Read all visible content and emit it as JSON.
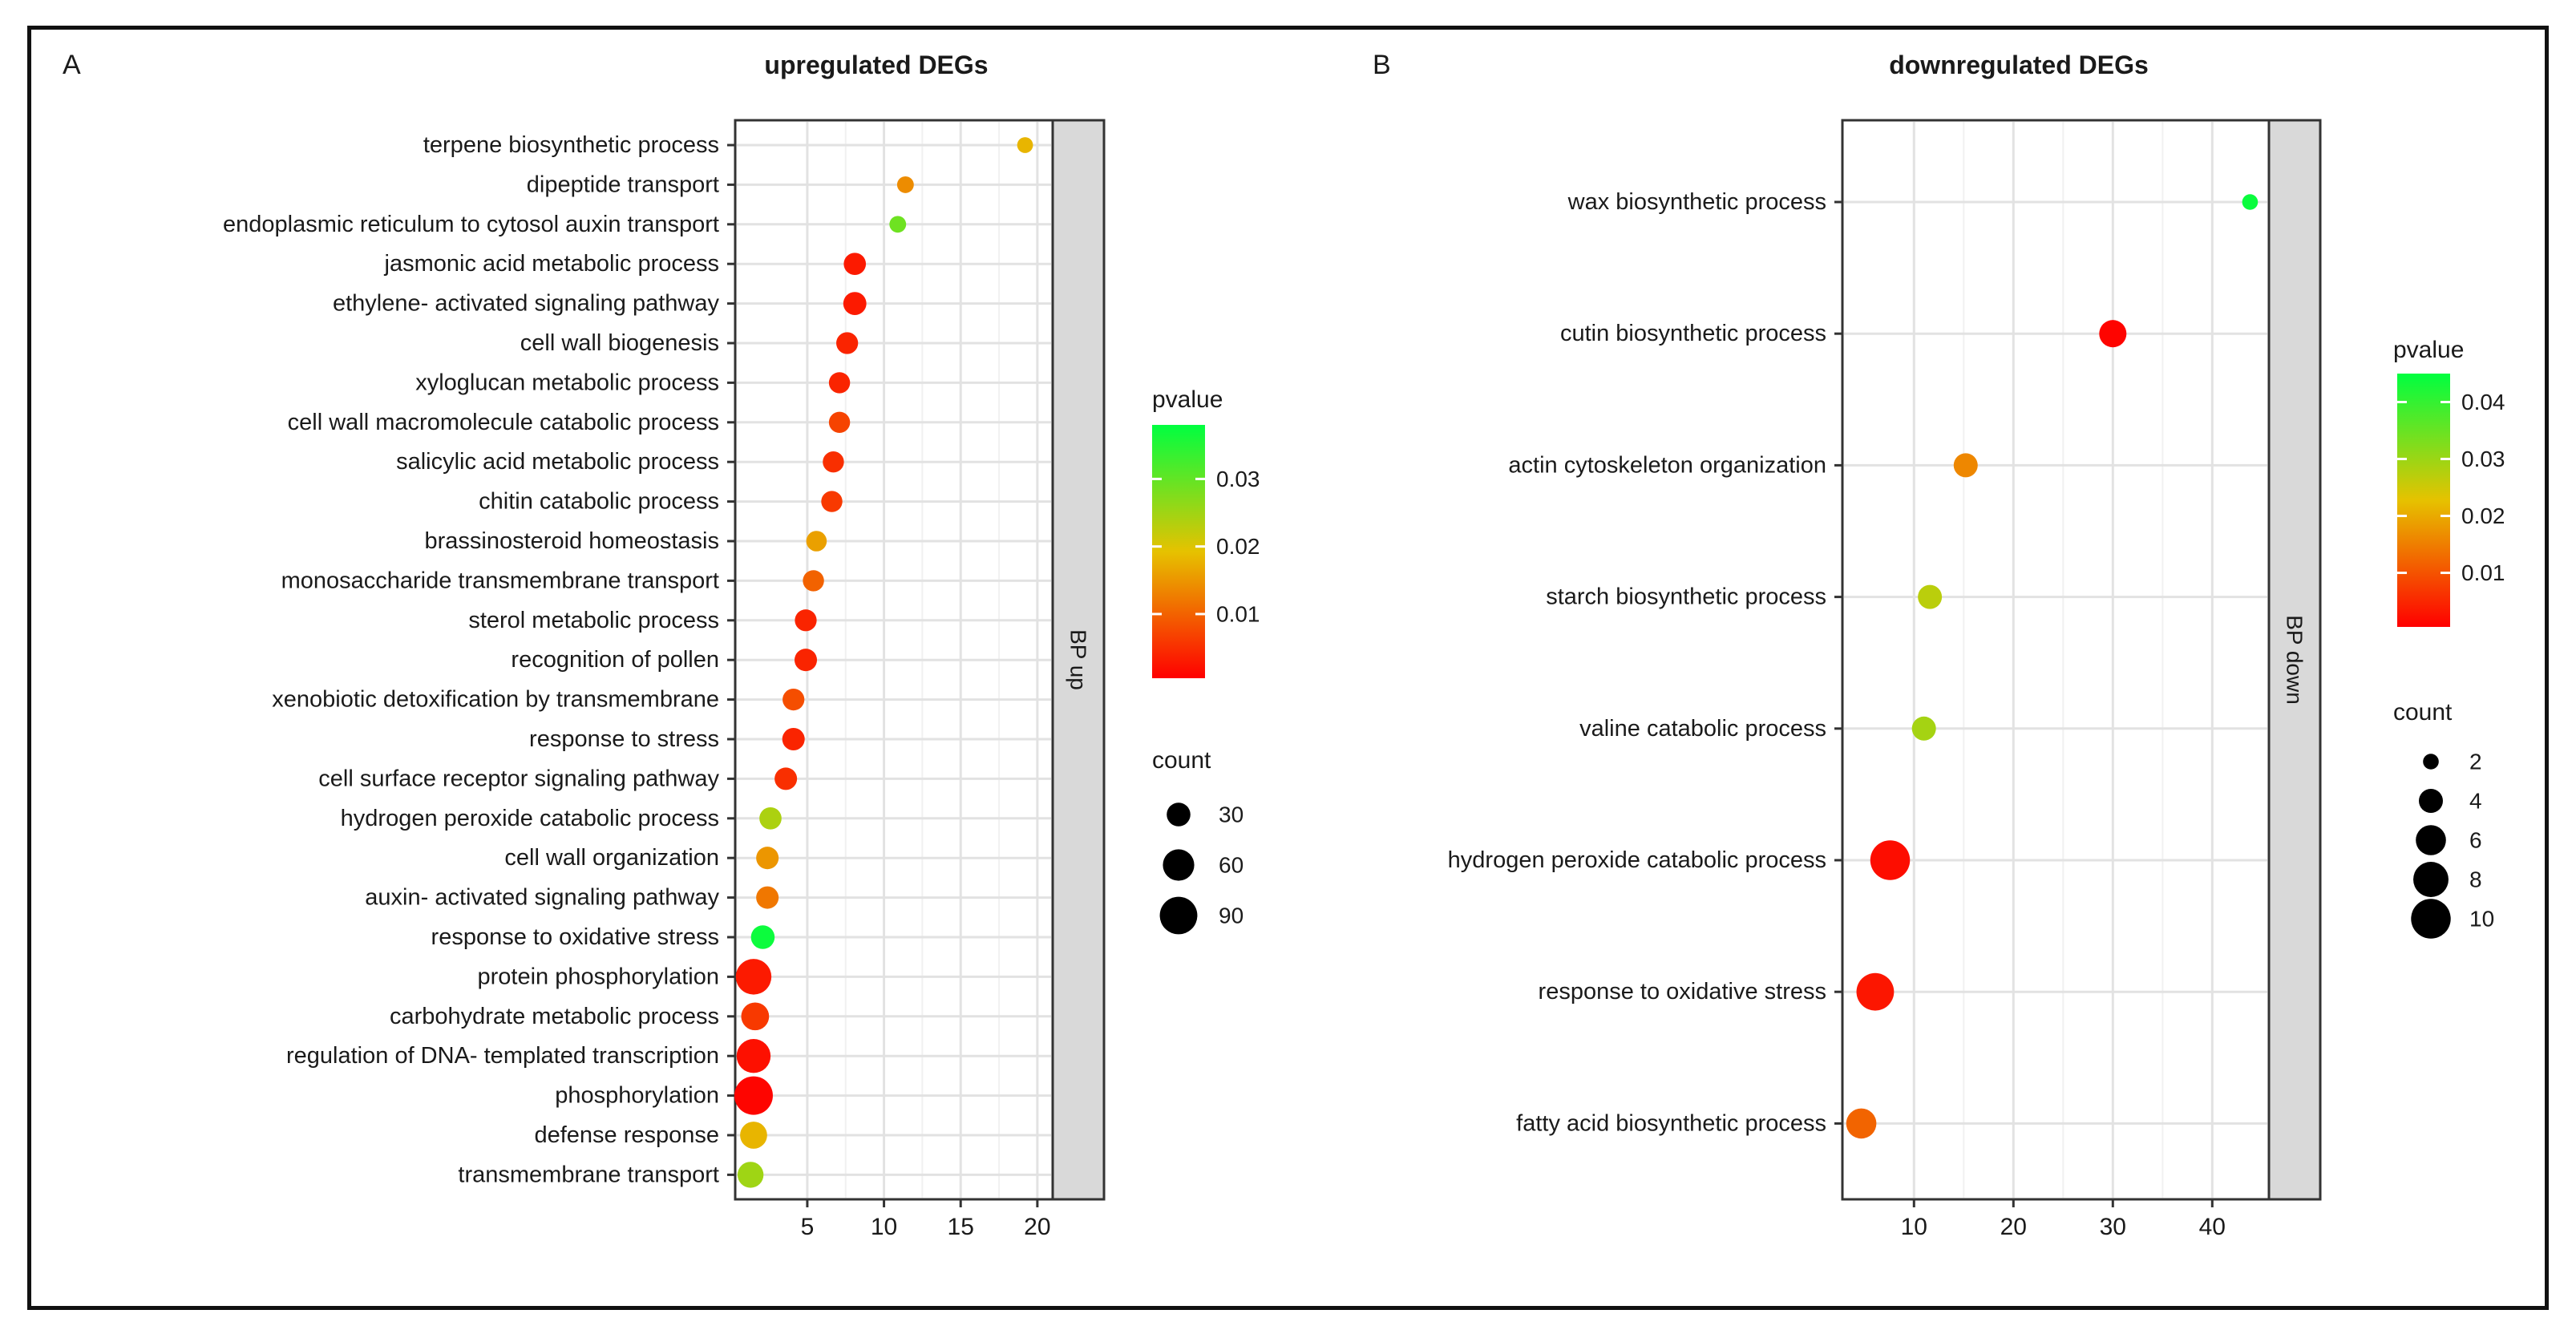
{
  "panels": [
    {
      "panel_label": "A",
      "title": "upregulated DEGs",
      "strip_label": "BP up",
      "colorbar_title": "pvalue",
      "size_title": "count",
      "colorbar_ticks": [
        {
          "label": "0.03",
          "value": 0.03
        },
        {
          "label": "0.02",
          "value": 0.02
        },
        {
          "label": "0.01",
          "value": 0.01
        }
      ],
      "size_ticks": [
        {
          "label": "30",
          "value": 30
        },
        {
          "label": "60",
          "value": 60
        },
        {
          "label": "90",
          "value": 90
        }
      ]
    },
    {
      "panel_label": "B",
      "title": "downregulated DEGs",
      "strip_label": "BP down",
      "colorbar_title": "pvalue",
      "size_title": "count",
      "colorbar_ticks": [
        {
          "label": "0.04",
          "value": 0.04
        },
        {
          "label": "0.03",
          "value": 0.03
        },
        {
          "label": "0.02",
          "value": 0.02
        },
        {
          "label": "0.01",
          "value": 0.01
        }
      ],
      "size_ticks": [
        {
          "label": "2",
          "value": 2
        },
        {
          "label": "4",
          "value": 4
        },
        {
          "label": "6",
          "value": 6
        },
        {
          "label": "8",
          "value": 8
        },
        {
          "label": "10",
          "value": 10
        }
      ]
    }
  ],
  "chart_data": [
    {
      "type": "scatter",
      "title": "upregulated DEGs",
      "facet": "BP up",
      "xlabel": "",
      "ylabel": "",
      "xlim": [
        0.3,
        21
      ],
      "xticks": [
        "5",
        "10",
        "15",
        "20"
      ],
      "xtick_values": [
        5,
        10,
        15,
        20
      ],
      "color_scale": {
        "name": "pvalue",
        "min": 0.0005,
        "max": 0.038,
        "low_color": "#ff0000",
        "mid_color": "#e6c200",
        "high_color": "#00ff40"
      },
      "size_scale": {
        "name": "count",
        "min": 5,
        "max": 95
      },
      "categories": [
        "terpene biosynthetic process",
        "dipeptide transport",
        "endoplasmic reticulum to cytosol auxin transport",
        "jasmonic acid metabolic process",
        "ethylene- activated signaling pathway",
        "cell wall biogenesis",
        "xyloglucan metabolic process",
        "cell wall macromolecule catabolic process",
        "salicylic acid metabolic process",
        "chitin catabolic process",
        "brassinosteroid homeostasis",
        "monosaccharide transmembrane transport",
        "sterol metabolic process",
        "recognition of pollen",
        "xenobiotic detoxification by transmembrane",
        "response to stress",
        "cell surface receptor signaling pathway",
        "hydrogen peroxide catabolic process",
        "cell wall organization",
        "auxin- activated signaling pathway",
        "response to oxidative stress",
        "protein phosphorylation",
        "carbohydrate metabolic process",
        "regulation of DNA- templated transcription",
        "phosphorylation",
        "defense response",
        "transmembrane transport"
      ],
      "x": [
        19.2,
        11.4,
        10.9,
        8.1,
        8.1,
        7.6,
        7.1,
        7.1,
        6.7,
        6.6,
        5.6,
        5.4,
        4.9,
        4.9,
        4.1,
        4.1,
        3.6,
        2.6,
        2.4,
        2.4,
        2.1,
        1.5,
        1.6,
        1.5,
        1.5,
        1.5,
        1.3
      ],
      "pvalue": [
        0.018,
        0.014,
        0.029,
        0.003,
        0.003,
        0.004,
        0.004,
        0.007,
        0.005,
        0.006,
        0.016,
        0.01,
        0.004,
        0.004,
        0.008,
        0.004,
        0.005,
        0.024,
        0.015,
        0.012,
        0.037,
        0.003,
        0.006,
        0.002,
        0.001,
        0.018,
        0.025
      ],
      "count": [
        8,
        10,
        10,
        25,
        28,
        24,
        22,
        22,
        22,
        22,
        20,
        22,
        24,
        26,
        24,
        26,
        26,
        25,
        26,
        26,
        30,
        80,
        45,
        72,
        95,
        42,
        38
      ]
    },
    {
      "type": "scatter",
      "title": "downregulated DEGs",
      "facet": "BP down",
      "xlabel": "",
      "ylabel": "",
      "xlim": [
        2.8,
        45.7
      ],
      "xticks": [
        "10",
        "20",
        "30",
        "40"
      ],
      "xtick_values": [
        10,
        20,
        30,
        40
      ],
      "color_scale": {
        "name": "pvalue",
        "min": 0.0005,
        "max": 0.045,
        "low_color": "#ff0000",
        "mid_color": "#e6c200",
        "high_color": "#00ff40"
      },
      "size_scale": {
        "name": "count",
        "min": 1.5,
        "max": 11
      },
      "categories": [
        "wax biosynthetic process",
        "cutin biosynthetic process",
        "actin cytoskeleton organization",
        "starch biosynthetic process",
        "valine catabolic process",
        "hydrogen peroxide catabolic process",
        "response to oxidative stress",
        "fatty acid biosynthetic process"
      ],
      "x": [
        43.8,
        30.0,
        15.2,
        11.6,
        11.0,
        7.6,
        6.1,
        4.7
      ],
      "pvalue": [
        0.044,
        0.001,
        0.016,
        0.027,
        0.029,
        0.002,
        0.003,
        0.012
      ],
      "count": [
        2,
        5,
        4,
        4,
        4,
        10,
        9,
        6
      ]
    }
  ]
}
